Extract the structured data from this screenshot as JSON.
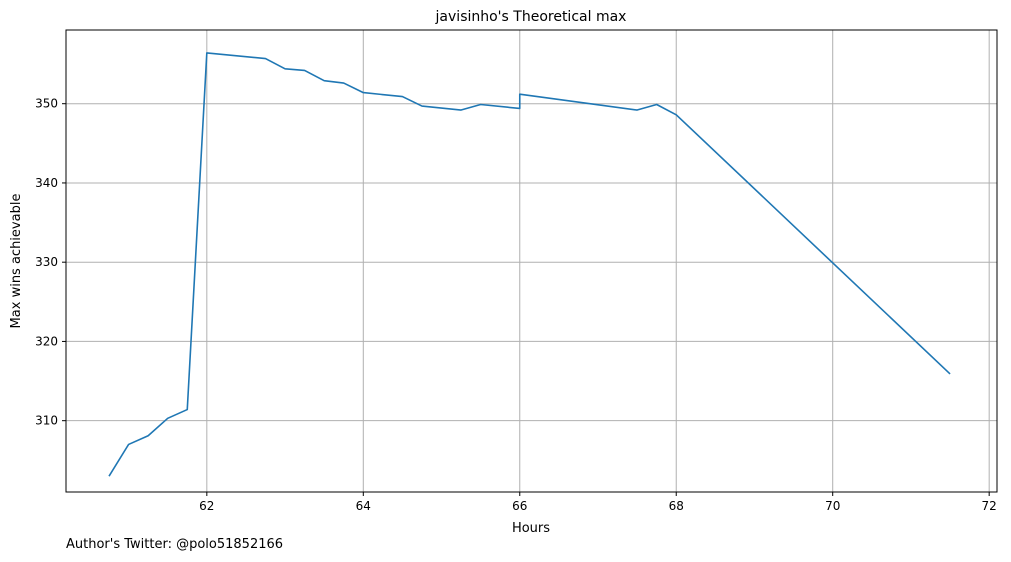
{
  "chart_data": {
    "type": "line",
    "title": "javisinho's Theoretical max",
    "xlabel": "Hours",
    "ylabel": "Max wins achievable",
    "xlim": [
      60.2,
      72.1
    ],
    "ylim": [
      301.0,
      359.3
    ],
    "xticks": [
      62,
      64,
      66,
      68,
      70,
      72
    ],
    "yticks": [
      310,
      320,
      330,
      340,
      350
    ],
    "grid": true,
    "color": "#1f77b4",
    "series": [
      {
        "x": [
          60.75,
          61.0,
          61.25,
          61.5,
          61.75,
          62.0,
          62.75,
          63.0,
          63.25,
          63.5,
          63.75,
          64.0,
          64.5,
          64.75,
          65.25,
          65.5,
          66.0,
          66.0,
          67.5,
          67.75,
          68.0,
          71.5
        ],
        "y": [
          303.0,
          307.0,
          308.1,
          310.3,
          311.4,
          356.4,
          355.7,
          354.4,
          354.2,
          352.9,
          352.6,
          351.4,
          350.9,
          349.7,
          349.2,
          349.9,
          349.4,
          351.2,
          349.2,
          349.9,
          348.6,
          315.9
        ]
      }
    ]
  },
  "footer": {
    "text": "Author's Twitter: @polo51852166"
  }
}
